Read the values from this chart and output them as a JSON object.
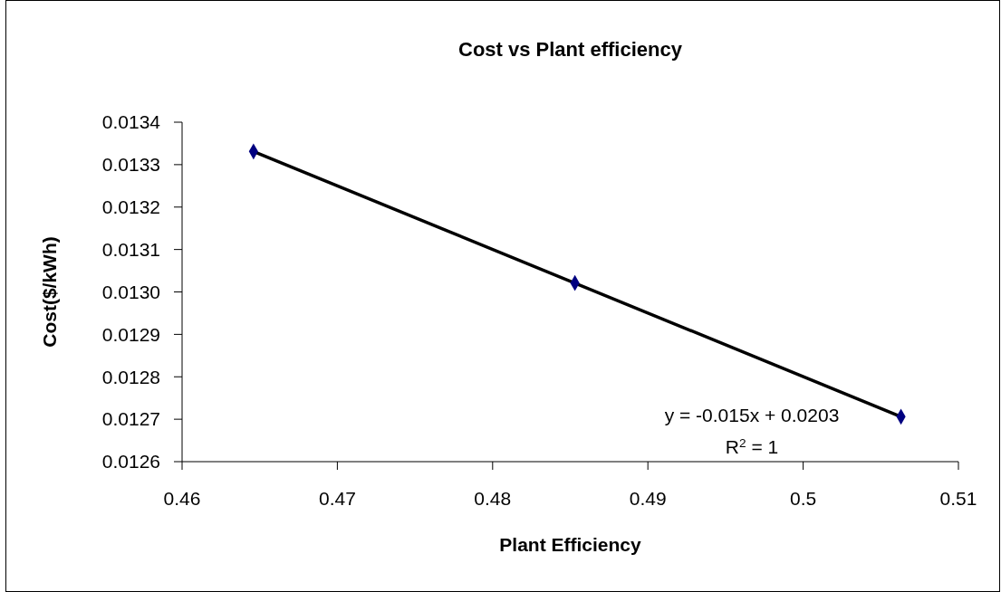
{
  "chart_data": {
    "type": "scatter",
    "title": "Cost vs Plant efficiency",
    "xlabel": "Plant Efficiency",
    "ylabel": "Cost($/kWh)",
    "x": [
      0.4646,
      0.4853,
      0.5063
    ],
    "series": [
      {
        "color": "#000080",
        "marker": "diamond",
        "values": [
          0.013331,
          0.013021,
          0.012706
        ]
      },
      {
        "type": "line",
        "color": "#000000",
        "marker": "none",
        "line_style": "solid",
        "x": [
          0.4646,
          0.5063
        ],
        "values": [
          0.013331,
          0.012706
        ]
      }
    ],
    "xlim": [
      0.46,
      0.51
    ],
    "xticks": [
      0.46,
      0.47,
      0.48,
      0.49,
      0.5,
      0.51
    ],
    "ylim": [
      0.0126,
      0.0134
    ],
    "yticks": [
      {
        "value": 0.0126,
        "label": "0.0126"
      },
      {
        "value": 0.0127,
        "label": "0.0127"
      },
      {
        "value": 0.0128,
        "label": "0.0128"
      },
      {
        "value": 0.0129,
        "label": "0.0129"
      },
      {
        "value": 0.013,
        "label": "0.0130"
      },
      {
        "value": 0.0131,
        "label": "0.0131"
      },
      {
        "value": 0.0132,
        "label": "0.0132"
      },
      {
        "value": 0.0133,
        "label": "0.0133"
      },
      {
        "value": 0.0134,
        "label": "0.0134"
      }
    ],
    "grid": false,
    "annotations": [
      "y = -0.015x + 0.0203",
      "R$^{2}$ = 1"
    ]
  }
}
